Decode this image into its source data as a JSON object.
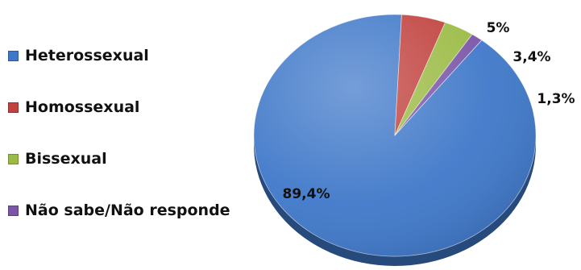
{
  "chart_data": {
    "type": "pie",
    "title": "",
    "slices": [
      {
        "label": "Heterossexual",
        "value": 89.4,
        "display": "89,4%",
        "color": "#3f78c9"
      },
      {
        "label": "Homossexual",
        "value": 5,
        "display": "5%",
        "color": "#c0413d"
      },
      {
        "label": "Bissexual",
        "value": 3.4,
        "display": "3,4%",
        "color": "#9bbb44"
      },
      {
        "label": "Não sabe/Não responde",
        "value": 1.3,
        "display": "1,3%",
        "color": "#7a55a8"
      }
    ],
    "legend_position": "left",
    "style": "3d"
  }
}
